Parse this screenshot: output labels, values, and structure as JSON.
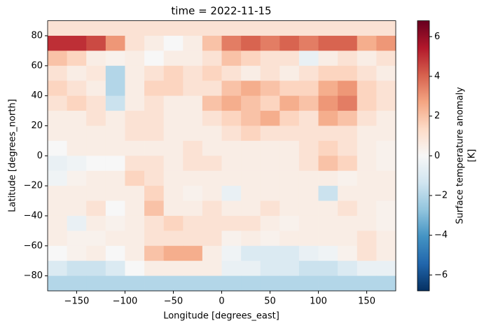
{
  "chart_data": {
    "type": "heatmap",
    "title": "time = 2022-11-15",
    "x_label": "Longitude [degrees_east]",
    "y_label": "Latitude [degrees_north]",
    "colorbar_label": [
      "Surface temperature anomaly",
      "[K]"
    ],
    "colormap": "RdBu_r",
    "clim": [
      -6.8,
      6.8
    ],
    "cticks": [
      {
        "value": -6,
        "label": "−6"
      },
      {
        "value": -4,
        "label": "−4"
      },
      {
        "value": -2,
        "label": "−2"
      },
      0,
      2,
      4,
      6
    ],
    "xlim": [
      -180,
      180
    ],
    "ylim": [
      -90,
      90
    ],
    "xticks": [
      {
        "value": -150,
        "label": "−150"
      },
      {
        "value": -100,
        "label": "−100"
      },
      {
        "value": -50,
        "label": "−50"
      },
      0,
      50,
      100,
      150
    ],
    "yticks": [
      {
        "value": -80,
        "label": "−80"
      },
      {
        "value": -60,
        "label": "−60"
      },
      {
        "value": -40,
        "label": "−40"
      },
      {
        "value": -20,
        "label": "−20"
      },
      0,
      20,
      40,
      60,
      80
    ],
    "x": [
      -170,
      -150,
      -130,
      -110,
      -90,
      -70,
      -50,
      -30,
      -10,
      10,
      30,
      50,
      70,
      90,
      110,
      130,
      150,
      170
    ],
    "y": [
      85,
      75,
      65,
      55,
      45,
      35,
      25,
      15,
      5,
      -5,
      -15,
      -25,
      -35,
      -45,
      -55,
      -65,
      -75,
      -85
    ],
    "z": [
      [
        1,
        1,
        1,
        1,
        1,
        1,
        1,
        1,
        1,
        1,
        1,
        1,
        1,
        1,
        1,
        1,
        1,
        1
      ],
      [
        5,
        5,
        4.5,
        3,
        1,
        0.5,
        0,
        0.5,
        2,
        3.5,
        4,
        3.5,
        4,
        3.5,
        4,
        4,
        2.5,
        3
      ],
      [
        2,
        1.5,
        0.5,
        0.3,
        0.5,
        0,
        0.5,
        0.5,
        1,
        2,
        1.5,
        1,
        1,
        -0.5,
        0.5,
        1,
        0.5,
        1
      ],
      [
        1,
        0.5,
        0.8,
        -2,
        0.5,
        1,
        1.5,
        1,
        1.5,
        1,
        0.5,
        1,
        0.5,
        1,
        1.5,
        1.5,
        1,
        0.5
      ],
      [
        1.5,
        1,
        0.5,
        -2,
        0.5,
        1.5,
        1.5,
        1,
        1,
        2,
        2.5,
        2,
        1.5,
        1.5,
        2.5,
        3,
        1.5,
        1
      ],
      [
        1,
        1.5,
        1,
        -1.5,
        0.5,
        1,
        0.5,
        0.5,
        2,
        2.5,
        2,
        1.5,
        2.5,
        2,
        3,
        3.5,
        1.5,
        1
      ],
      [
        0.5,
        0.5,
        1,
        0.5,
        1,
        1,
        0.5,
        0.5,
        1,
        1.5,
        2,
        2.5,
        1.5,
        1,
        2.5,
        2,
        1,
        0.5
      ],
      [
        0.5,
        0.5,
        0.5,
        0.5,
        1,
        1,
        0.5,
        0.5,
        0.5,
        1,
        1.5,
        1,
        1,
        1,
        1,
        1,
        0.5,
        0.5
      ],
      [
        0,
        0.5,
        0.5,
        0.5,
        0.5,
        0.5,
        0.5,
        1,
        0.5,
        0.5,
        0.5,
        0.5,
        0.5,
        1,
        1.5,
        1,
        0.5,
        0.3
      ],
      [
        -0.5,
        -0.3,
        0,
        0,
        1,
        1,
        0.5,
        1,
        1,
        0.5,
        0.5,
        0.5,
        0.5,
        1,
        2,
        1.5,
        0.5,
        0.3
      ],
      [
        -0.3,
        0.3,
        0.5,
        0.5,
        1.5,
        1,
        0.5,
        0.5,
        0.5,
        0.5,
        0.5,
        0.5,
        0.5,
        0.5,
        0.5,
        0.3,
        0.5,
        0.5
      ],
      [
        0.5,
        0.5,
        0.5,
        0.5,
        0.5,
        1.5,
        0.5,
        0.3,
        0.5,
        -0.5,
        0.5,
        0.5,
        0.5,
        0.5,
        -1.5,
        0.5,
        0.5,
        0.5
      ],
      [
        0.5,
        0.5,
        1,
        0,
        0.5,
        2,
        0.5,
        0.5,
        1,
        0.5,
        0.5,
        1,
        0.5,
        0.5,
        0.5,
        1,
        0.5,
        0.3
      ],
      [
        0.5,
        -0.5,
        0.5,
        0.3,
        0.5,
        1,
        1.5,
        1,
        1,
        1,
        1,
        0.5,
        0.3,
        0.5,
        0.5,
        0.5,
        0.5,
        0.3
      ],
      [
        0.5,
        0.3,
        0.3,
        0.5,
        0.5,
        1,
        1,
        1,
        1,
        0.3,
        0.5,
        0.3,
        0.5,
        0.5,
        0.5,
        0.5,
        1,
        0.5
      ],
      [
        0,
        0.3,
        0.5,
        0,
        0.5,
        2,
        2.5,
        2.5,
        0.5,
        -0.3,
        -1,
        -1,
        -1,
        -0.5,
        -0.3,
        0.3,
        1,
        0.5
      ],
      [
        -1,
        -1.5,
        -1.5,
        -1,
        0,
        0.5,
        0.5,
        0.5,
        0.5,
        -0.5,
        -0.5,
        -1,
        -1,
        -1.5,
        -1.5,
        -1,
        -0.5,
        -0.5
      ],
      [
        -2,
        -2,
        -2,
        -2,
        -2,
        -2,
        -2,
        -2,
        -2,
        -2,
        -2,
        -2,
        -2,
        -2,
        -2,
        -2,
        -2,
        -2
      ]
    ]
  }
}
